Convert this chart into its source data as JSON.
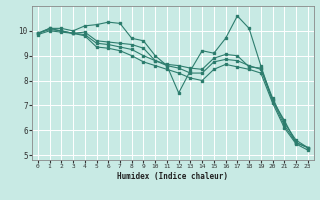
{
  "xlabel": "Humidex (Indice chaleur)",
  "ylabel": "",
  "background_color": "#c8eae4",
  "grid_color": "#ffffff",
  "line_color": "#2d7d6e",
  "xlim": [
    -0.5,
    23.5
  ],
  "ylim": [
    4.8,
    11.0
  ],
  "yticks": [
    5,
    6,
    7,
    8,
    9,
    10
  ],
  "xticks": [
    0,
    1,
    2,
    3,
    4,
    5,
    6,
    7,
    8,
    9,
    10,
    11,
    12,
    13,
    14,
    15,
    16,
    17,
    18,
    19,
    20,
    21,
    22,
    23
  ],
  "series": [
    {
      "x": [
        0,
        1,
        2,
        3,
        4,
        5,
        6,
        7,
        8,
        9,
        10,
        11,
        12,
        13,
        14,
        15,
        16,
        17,
        18,
        19,
        20,
        21,
        22,
        23
      ],
      "y": [
        9.9,
        10.1,
        10.1,
        10.0,
        10.2,
        10.25,
        10.35,
        10.3,
        9.7,
        9.6,
        9.0,
        8.6,
        7.5,
        8.4,
        9.2,
        9.1,
        9.7,
        10.6,
        10.1,
        8.6,
        7.2,
        6.4,
        5.5,
        5.3
      ]
    },
    {
      "x": [
        0,
        1,
        2,
        3,
        4,
        5,
        6,
        7,
        8,
        9,
        10,
        11,
        12,
        13,
        14,
        15,
        16,
        17,
        18,
        19,
        20,
        21,
        22,
        23
      ],
      "y": [
        9.9,
        10.1,
        10.0,
        9.9,
        9.95,
        9.6,
        9.55,
        9.5,
        9.45,
        9.3,
        8.8,
        8.65,
        8.6,
        8.5,
        8.45,
        8.9,
        9.05,
        9.0,
        8.55,
        8.5,
        7.3,
        6.3,
        5.6,
        5.3
      ]
    },
    {
      "x": [
        0,
        1,
        2,
        3,
        4,
        5,
        6,
        7,
        8,
        9,
        10,
        11,
        12,
        13,
        14,
        15,
        16,
        17,
        18,
        19,
        20,
        21,
        22,
        23
      ],
      "y": [
        9.9,
        10.05,
        10.0,
        9.9,
        9.85,
        9.5,
        9.45,
        9.35,
        9.25,
        9.0,
        8.8,
        8.6,
        8.5,
        8.3,
        8.3,
        8.75,
        8.85,
        8.8,
        8.6,
        8.45,
        7.2,
        6.2,
        5.5,
        5.3
      ]
    },
    {
      "x": [
        0,
        1,
        2,
        3,
        4,
        5,
        6,
        7,
        8,
        9,
        10,
        11,
        12,
        13,
        14,
        15,
        16,
        17,
        18,
        19,
        20,
        21,
        22,
        23
      ],
      "y": [
        9.85,
        10.0,
        9.95,
        9.9,
        9.8,
        9.35,
        9.3,
        9.2,
        9.0,
        8.75,
        8.6,
        8.45,
        8.3,
        8.1,
        8.0,
        8.45,
        8.65,
        8.55,
        8.45,
        8.3,
        7.1,
        6.1,
        5.45,
        5.2
      ]
    }
  ]
}
